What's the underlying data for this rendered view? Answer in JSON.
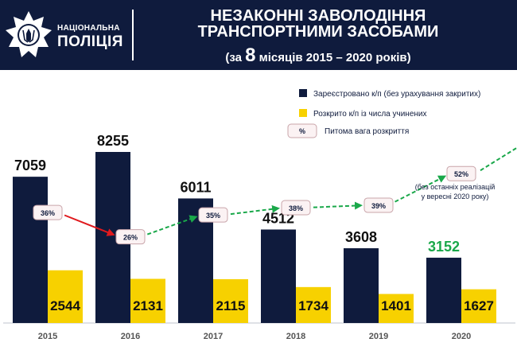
{
  "header": {
    "org_line1": "НАЦІОНАЛЬНА",
    "org_line2": "ПОЛІЦІЯ",
    "title_line1": "НЕЗАКОННІ ЗАВОЛОДІННЯ",
    "title_line2": "ТРАНСПОРТНИМИ ЗАСОБАМИ",
    "title_pre": "(за ",
    "title_num": "8",
    "title_post": " місяців 2015 – 2020 років)",
    "background": "#0f1b3d"
  },
  "legend": {
    "registered": "Зареєстровано к/п (без урахування закритих)",
    "solved": "Розкрито к/п із числа учинених",
    "share_symbol": "%",
    "share": "Питома вага розкриття"
  },
  "annotation": {
    "line1": "(без останніх реалізацій",
    "line2": "у вересні 2020 року)"
  },
  "chart_data": {
    "type": "bar",
    "categories": [
      "2015",
      "2016",
      "2017",
      "2018",
      "2019",
      "2020"
    ],
    "series": [
      {
        "name": "Зареєстровано к/п (без урахування закритих)",
        "values": [
          7059,
          8255,
          6011,
          4512,
          3608,
          3152
        ],
        "color": "#0f1b3d"
      },
      {
        "name": "Розкрито к/п із числа учинених",
        "values": [
          2544,
          2131,
          2115,
          1734,
          1401,
          1627
        ],
        "color": "#f7d100"
      }
    ],
    "share_line": {
      "name": "Питома вага розкриття",
      "values": [
        36,
        26,
        35,
        38,
        39,
        52
      ],
      "labels": [
        "36%",
        "26%",
        "35%",
        "38%",
        "39%",
        "52%"
      ],
      "colors": {
        "decline": "#e0191d",
        "growth": "#1aa84a"
      }
    },
    "highlight_color": "#1aa84a",
    "ylim": [
      0,
      8255
    ]
  }
}
